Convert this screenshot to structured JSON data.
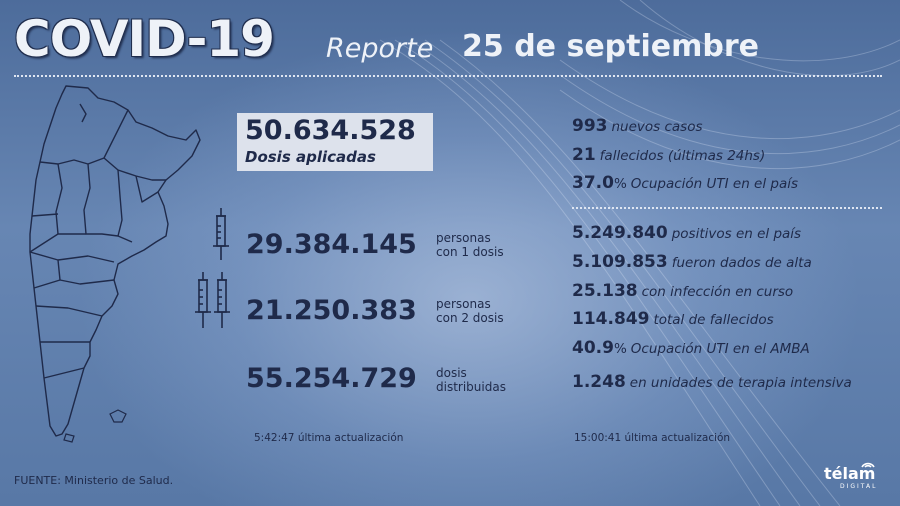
{
  "header": {
    "title": "COVID-19",
    "subtitle_prefix": "Reporte",
    "date": "25 de septiembre"
  },
  "vaccination": {
    "applied_number": "50.634.528",
    "applied_label": "Dosis aplicadas",
    "one_dose_number": "29.384.145",
    "one_dose_label_1": "personas",
    "one_dose_label_2": "con 1 dosis",
    "two_dose_number": "21.250.383",
    "two_dose_label_1": "personas",
    "two_dose_label_2": "con 2 dosis",
    "distributed_number": "55.254.729",
    "distributed_label_1": "dosis",
    "distributed_label_2": "distribuidas",
    "updated_time": "5:42:47",
    "updated_label": "última actualización"
  },
  "cases": {
    "daily": [
      {
        "value": "993",
        "label": "nuevos casos"
      },
      {
        "value": "21",
        "label": "fallecidos (últimas 24hs)"
      },
      {
        "value": "37.0",
        "unit": "%",
        "label": "Ocupación UTI en el país"
      }
    ],
    "totals": [
      {
        "value": "5.249.840",
        "label": "positivos en el país"
      },
      {
        "value": "5.109.853",
        "label": "fueron dados de alta"
      },
      {
        "value": "25.138",
        "label": "con infección en curso"
      },
      {
        "value": "114.849",
        "label": "total de fallecidos"
      },
      {
        "value": "40.9",
        "unit": "%",
        "label": "Ocupación UTI en el AMBA"
      },
      {
        "value": "1.248",
        "label": "en unidades de terapia intensiva"
      }
    ],
    "updated_time": "15:00:41",
    "updated_label": "última actualización"
  },
  "footer": {
    "source": "FUENTE: Ministerio de Salud.",
    "logo": "télam",
    "logo_sub": "DIGITAL"
  },
  "icons": {
    "syringe": "syringe-icon",
    "map": "argentina-map-icon"
  },
  "colors": {
    "background": "#5d7ba6",
    "text_dark": "#1f2a4a",
    "text_light": "#eef2f8",
    "box": "#dde2ec"
  }
}
